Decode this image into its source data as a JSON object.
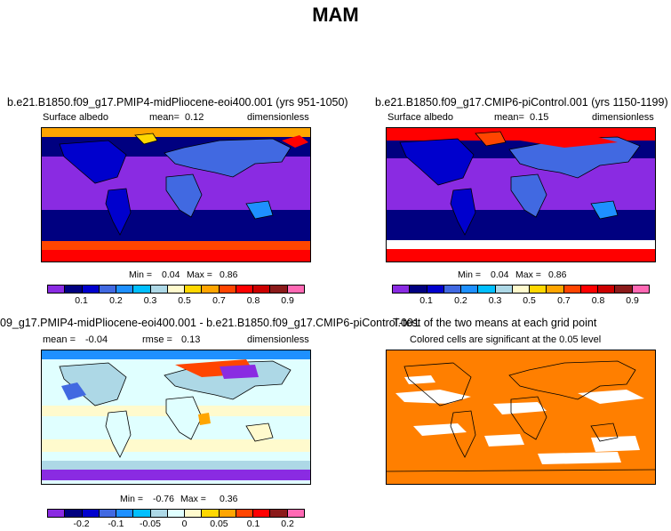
{
  "figure": {
    "title": "MAM"
  },
  "colors": {
    "albedo_palette": [
      "#8a2be2",
      "#000080",
      "#0000cd",
      "#4169e1",
      "#1e90ff",
      "#00bfff",
      "#add8e6",
      "#fffacd",
      "#ffd700",
      "#ffa500",
      "#ff4500",
      "#ff0000",
      "#cc0000",
      "#8b1a1a",
      "#ff69b4"
    ],
    "diff_palette": [
      "#8a2be2",
      "#000080",
      "#0000cd",
      "#4169e1",
      "#1e90ff",
      "#00bfff",
      "#add8e6",
      "#e0ffff",
      "#fffacd",
      "#ffd700",
      "#ffa500",
      "#ff4500",
      "#ff0000",
      "#8b1a1a",
      "#ff69b4"
    ],
    "significance_color": "#ff7f00",
    "land_outline": "#000000"
  },
  "chart_data": [
    {
      "type": "heatmap",
      "title": "b.e21.B1850.f09_g17.PMIP4-midPliocene-eoi400.001 (yrs 951-1050)",
      "variable": "Surface albedo",
      "mean_label": "mean=",
      "mean": "0.12",
      "units": "dimensionless",
      "min_label": "Min =",
      "min": "0.04",
      "max_label": "Max =",
      "max": "0.86",
      "colorbar_ticks": [
        "0.1",
        "0.2",
        "0.3",
        "0.5",
        "0.7",
        "0.8",
        "0.9"
      ]
    },
    {
      "type": "heatmap",
      "title": "b.e21.B1850.f09_g17.CMIP6-piControl.001 (yrs 1150-1199)",
      "variable": "Surface albedo",
      "mean_label": "mean=",
      "mean": "0.15",
      "units": "dimensionless",
      "min_label": "Min =",
      "min": "0.04",
      "max_label": "Max =",
      "max": "0.86",
      "colorbar_ticks": [
        "0.1",
        "0.2",
        "0.3",
        "0.5",
        "0.7",
        "0.8",
        "0.9"
      ]
    },
    {
      "type": "heatmap",
      "title": "09_g17.PMIP4-midPliocene-eoi400.001 - b.e21.B1850.f09_g17.CMIP6-piControl.001",
      "mean_label": "mean =",
      "mean": "-0.04",
      "rmse_label": "rmse =",
      "rmse": "0.13",
      "units": "dimensionless",
      "min_label": "Min =",
      "min": "-0.76",
      "max_label": "Max =",
      "max": "0.36",
      "colorbar_ticks": [
        "-0.2",
        "-0.1",
        "-0.05",
        "0",
        "0.05",
        "0.1",
        "0.2"
      ]
    },
    {
      "type": "heatmap",
      "title": "T-test of the two means at each grid point",
      "subtitle": "Colored cells are significant at the 0.05 level"
    }
  ]
}
